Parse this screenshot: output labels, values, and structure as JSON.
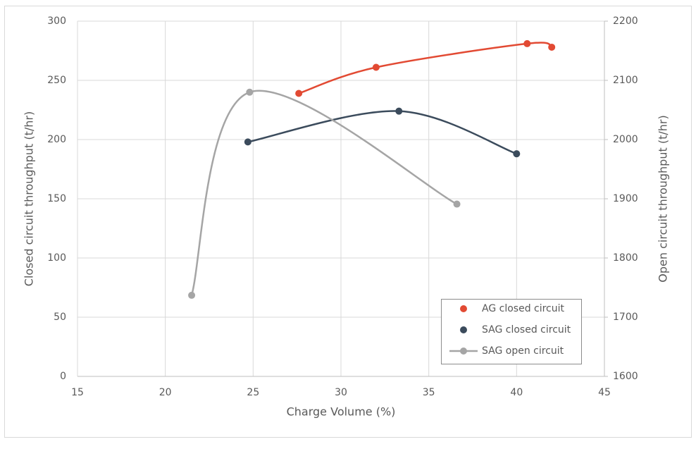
{
  "chart_data": {
    "type": "scatter",
    "x_label": "Charge Volume (%)",
    "y_label": "Closed circuit throughput (t/hr)",
    "y2_label": "Open circuit throughput (t/hr)",
    "xlim": [
      15,
      45
    ],
    "xticks": [
      15,
      20,
      25,
      30,
      35,
      40,
      45
    ],
    "ylim": [
      0,
      300
    ],
    "yticks": [
      0,
      50,
      100,
      150,
      200,
      250,
      300
    ],
    "y2lim": [
      1600,
      2200
    ],
    "y2ticks": [
      1600,
      1700,
      1800,
      1900,
      2000,
      2100,
      2200
    ],
    "grid": true,
    "legend": "lower right",
    "series": [
      {
        "name": "AG closed circuit",
        "color": "#e24a33",
        "x": [
          27.6,
          32,
          40.6,
          42
        ],
        "values": [
          239,
          261,
          281,
          278
        ]
      },
      {
        "name": "SAG closed circuit",
        "color": "#3b4b5c",
        "x": [
          24.7,
          33.3,
          40
        ],
        "values": [
          198,
          224,
          188
        ]
      },
      {
        "name": "SAG open circuit",
        "color": "#a5a5a5",
        "axis": "y2",
        "x": [
          21.5,
          24.8,
          36.6
        ],
        "values": [
          1737,
          2080,
          1891
        ]
      }
    ]
  }
}
